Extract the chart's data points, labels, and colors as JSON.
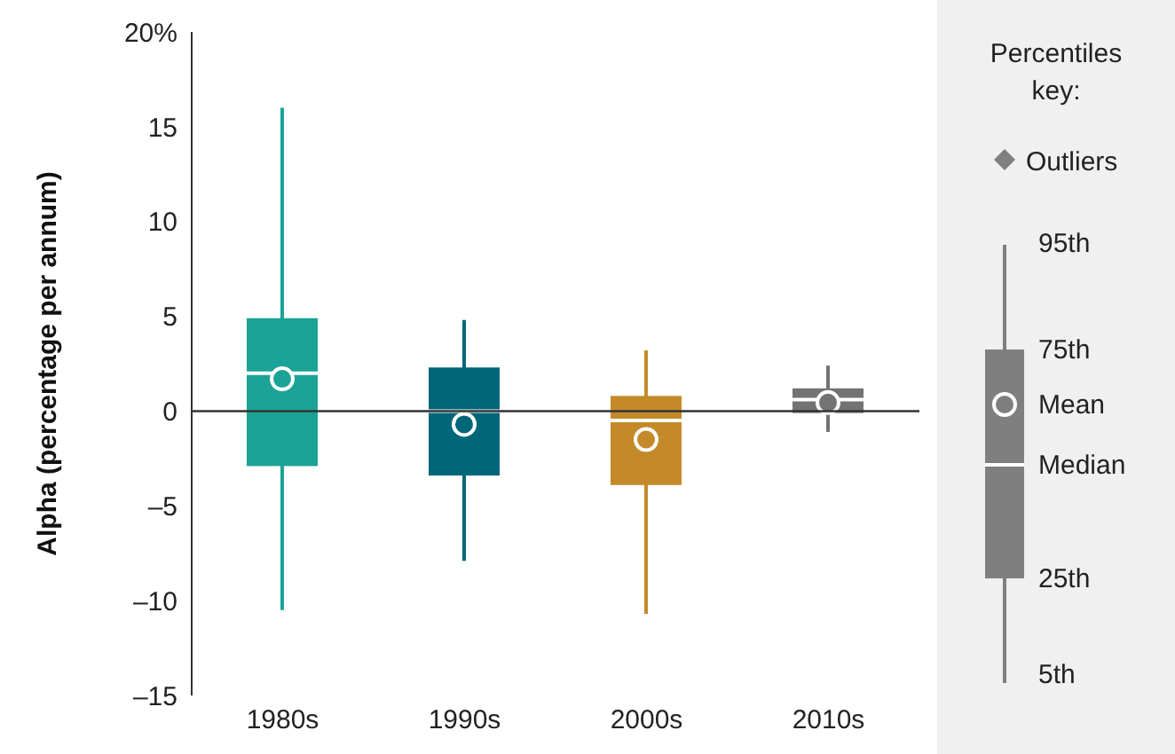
{
  "chart_data": {
    "type": "box",
    "ylabel": "Alpha (percentage per annum)",
    "categories": [
      "1980s",
      "1990s",
      "2000s",
      "2010s"
    ],
    "colors": [
      "#1aa396",
      "#00677a",
      "#c48a2a",
      "#737373"
    ],
    "boxes": [
      {
        "low": -10.5,
        "q1": -2.9,
        "median": 2,
        "q3": 4.9,
        "high": 16,
        "mean": 1.7
      },
      {
        "low": -7.9,
        "q1": -3.4,
        "median": 0,
        "q3": 2.3,
        "high": 4.8,
        "mean": -0.7
      },
      {
        "low": -10.7,
        "q1": -3.9,
        "median": -0.5,
        "q3": 0.8,
        "high": 3.2,
        "mean": -1.5
      },
      {
        "low": -1.1,
        "q1": -0.1,
        "median": 0.6,
        "q3": 1.2,
        "high": 2.4,
        "mean": 0.45
      }
    ],
    "ylim": [
      -15,
      20
    ],
    "yticks": [
      {
        "value": -15,
        "label": "–15"
      },
      {
        "value": -10,
        "label": "–10"
      },
      {
        "value": -5,
        "label": "–5"
      },
      0,
      5,
      10,
      15,
      {
        "value": 20,
        "label": "20%"
      }
    ],
    "ref_lines": [
      {
        "axis": "y",
        "value": 0,
        "color": "#333333"
      }
    ],
    "grid": false,
    "legend": false,
    "annotations": [
      "Percentiles key:",
      "Outliers",
      "95th",
      "75th",
      "Mean",
      "Median",
      "25th",
      "5th"
    ]
  }
}
